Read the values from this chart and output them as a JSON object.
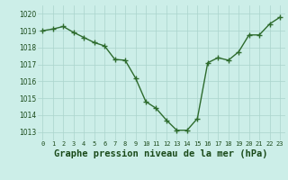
{
  "x": [
    0,
    1,
    2,
    3,
    4,
    5,
    6,
    7,
    8,
    9,
    10,
    11,
    12,
    13,
    14,
    15,
    16,
    17,
    18,
    19,
    20,
    21,
    22,
    23
  ],
  "y": [
    1019.0,
    1019.1,
    1019.25,
    1018.9,
    1018.6,
    1018.3,
    1018.1,
    1017.3,
    1017.25,
    1016.2,
    1014.8,
    1014.4,
    1013.7,
    1013.1,
    1013.1,
    1013.8,
    1017.1,
    1017.4,
    1017.25,
    1017.75,
    1018.75,
    1018.75,
    1019.4,
    1019.8
  ],
  "line_color": "#2d6b2d",
  "marker": "+",
  "marker_size": 4,
  "marker_color": "#2d6b2d",
  "bg_color": "#cceee8",
  "grid_color": "#aad4cc",
  "xlabel": "Graphe pression niveau de la mer (hPa)",
  "xlabel_fontsize": 7.5,
  "xlabel_color": "#1a4a1a",
  "tick_color": "#1a4a1a",
  "ylim": [
    1012.5,
    1020.5
  ],
  "yticks": [
    1013,
    1014,
    1015,
    1016,
    1017,
    1018,
    1019,
    1020
  ],
  "xticks": [
    0,
    1,
    2,
    3,
    4,
    5,
    6,
    7,
    8,
    9,
    10,
    11,
    12,
    13,
    14,
    15,
    16,
    17,
    18,
    19,
    20,
    21,
    22,
    23
  ],
  "linewidth": 1.0
}
